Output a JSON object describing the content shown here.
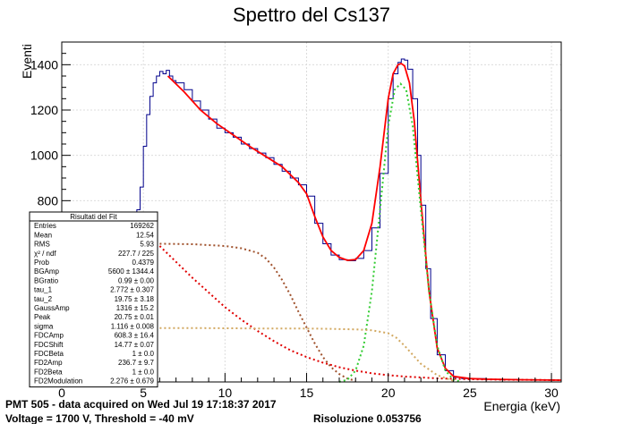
{
  "chart_data": {
    "type": "line",
    "title": "Spettro del Cs137",
    "xlabel": "Energia (keV)",
    "ylabel": "Eventi",
    "xlim": [
      0,
      30.6
    ],
    "ylim": [
      0,
      1500
    ],
    "x_ticks": [
      0,
      5,
      10,
      15,
      20,
      25,
      30
    ],
    "y_ticks": [
      800,
      1000,
      1200,
      1400
    ],
    "grid": true,
    "colors": {
      "histogram": "#00008b",
      "total_fit": "#ff0000",
      "background_exp": "#e00000",
      "compton_edge": "#a0522d",
      "gaussian": "#33cc33",
      "backscatter": "#d2a860"
    },
    "histogram": {
      "x": [
        4.6,
        4.8,
        5.0,
        5.2,
        5.4,
        5.6,
        5.8,
        6.0,
        6.2,
        6.4,
        6.6,
        6.8,
        7.0,
        7.5,
        8.0,
        8.5,
        9.0,
        9.5,
        10.0,
        10.5,
        11.0,
        11.5,
        12.0,
        12.5,
        13.0,
        13.5,
        14.0,
        14.5,
        15.0,
        15.5,
        16.0,
        16.5,
        17.0,
        17.5,
        18.0,
        18.5,
        19.0,
        19.5,
        20.0,
        20.3,
        20.6,
        20.8,
        21.0,
        21.2,
        21.5,
        21.8,
        22.0,
        22.3,
        22.6,
        23.0,
        23.5,
        24.0,
        24.5,
        25.0,
        26.0,
        27.0,
        28.0,
        29.0,
        30.0,
        30.6
      ],
      "y": [
        760,
        860,
        1040,
        1180,
        1260,
        1320,
        1350,
        1370,
        1360,
        1375,
        1350,
        1330,
        1320,
        1290,
        1240,
        1200,
        1160,
        1120,
        1100,
        1080,
        1050,
        1030,
        1010,
        990,
        960,
        930,
        900,
        870,
        820,
        700,
        610,
        560,
        540,
        535,
        545,
        580,
        680,
        920,
        1250,
        1360,
        1410,
        1425,
        1420,
        1380,
        1250,
        1000,
        780,
        500,
        280,
        120,
        50,
        20,
        15,
        15,
        12,
        12,
        10,
        10,
        8,
        8
      ]
    },
    "fit_curves": [
      {
        "name": "",
        "color_key": "total_fit",
        "dash": false,
        "x": [
          6.5,
          7.5,
          8.5,
          9.5,
          10.5,
          11.5,
          12.5,
          13.5,
          14.5,
          15.0,
          15.5,
          16.0,
          16.5,
          17.0,
          17.5,
          18.0,
          18.5,
          19.0,
          19.5,
          20.0,
          20.3,
          20.6,
          20.8,
          21.0,
          21.3,
          21.6,
          22.0,
          22.5,
          23.0,
          23.5,
          24.0,
          25.0,
          26.0,
          28.0,
          30.6
        ],
        "y": [
          1350,
          1280,
          1200,
          1140,
          1090,
          1040,
          995,
          950,
          880,
          830,
          730,
          640,
          580,
          550,
          537,
          540,
          580,
          700,
          950,
          1250,
          1360,
          1400,
          1405,
          1395,
          1320,
          1150,
          800,
          400,
          150,
          60,
          25,
          15,
          12,
          10,
          8
        ]
      },
      {
        "name": "",
        "color_key": "background_exp",
        "dash": true,
        "x": [
          6.0,
          7.0,
          8.0,
          9.0,
          10.0,
          11.0,
          12.0,
          13.0,
          14.0,
          15.0,
          16.0,
          17.0,
          18.0,
          19.0,
          20.0,
          21.0,
          22.0,
          23.0,
          24.0,
          25.0,
          27.0,
          30.6
        ],
        "y": [
          600,
          530,
          460,
          395,
          330,
          275,
          225,
          180,
          140,
          110,
          85,
          65,
          50,
          38,
          30,
          24,
          20,
          16,
          14,
          12,
          10,
          8
        ]
      },
      {
        "name": "",
        "color_key": "compton_edge",
        "dash": true,
        "x": [
          6.0,
          8.0,
          10.0,
          11.0,
          12.0,
          12.5,
          13.0,
          13.5,
          14.0,
          14.5,
          15.0,
          15.5,
          16.0,
          16.5,
          17.0,
          17.5,
          18.0
        ],
        "y": [
          610,
          608,
          600,
          590,
          570,
          545,
          505,
          450,
          385,
          310,
          240,
          170,
          110,
          65,
          35,
          15,
          5
        ]
      },
      {
        "name": "",
        "color_key": "gaussian",
        "dash": true,
        "x": [
          17.0,
          17.5,
          18.0,
          18.5,
          19.0,
          19.5,
          20.0,
          20.4,
          20.75,
          21.1,
          21.5,
          22.0,
          22.5,
          23.0,
          23.5,
          24.0,
          24.5
        ],
        "y": [
          0,
          10,
          50,
          160,
          400,
          760,
          1130,
          1290,
          1316,
          1290,
          1130,
          760,
          400,
          160,
          50,
          10,
          0
        ]
      },
      {
        "name": "",
        "color_key": "backscatter",
        "dash": true,
        "x": [
          6.0,
          8.0,
          10.0,
          12.0,
          14.0,
          16.0,
          18.0,
          19.0,
          20.0,
          20.5,
          21.0,
          21.5,
          22.0,
          23.0,
          24.0
        ],
        "y": [
          238,
          238,
          237,
          236,
          236,
          235,
          232,
          228,
          215,
          195,
          160,
          120,
          80,
          30,
          5
        ]
      }
    ]
  },
  "stats_box": {
    "title": "Risultati del Fit",
    "rows": [
      {
        "label": "Entries",
        "value": "169262"
      },
      {
        "label": "Mean",
        "value": "12.54"
      },
      {
        "label": "RMS",
        "value": "5.93"
      },
      {
        "label": "χ² / ndf",
        "value": "227.7 / 225"
      },
      {
        "label": "Prob",
        "value": "0.4379"
      },
      {
        "label": "BGAmp",
        "value": "5600 ± 1344.4"
      },
      {
        "label": "BGratio",
        "value": "0.99 ± 0.00"
      },
      {
        "label": "tau_1",
        "value": "2.772 ± 0.307"
      },
      {
        "label": "tau_2",
        "value": "19.75 ± 3.18"
      },
      {
        "label": "GaussAmp",
        "value": "1316 ± 15.2"
      },
      {
        "label": "Peak",
        "value": "20.75 ± 0.01"
      },
      {
        "label": "sigma",
        "value": "1.116 ± 0.008"
      },
      {
        "label": "FDCAmp",
        "value": "608.3 ± 16.4"
      },
      {
        "label": "FDCShift",
        "value": "14.77 ± 0.07"
      },
      {
        "label": "FDCBeta",
        "value": "1 ± 0.0"
      },
      {
        "label": "FD2Amp",
        "value": "236.7 ± 9.7"
      },
      {
        "label": "FD2Beta",
        "value": "1 ± 0.0"
      },
      {
        "label": "FD2Modulation",
        "value": "2.276 ± 0.679"
      }
    ]
  },
  "info": {
    "line1": "PMT 505 - data acquired on Wed Jul 19 17:18:37 2017",
    "line2": "Voltage = 1700 V, Threshold = -40 mV",
    "resolution": "Risoluzione 0.053756"
  }
}
